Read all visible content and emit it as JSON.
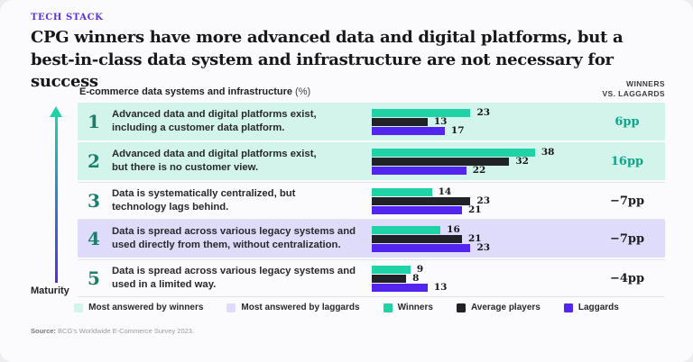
{
  "eyebrow": "TECH STACK",
  "title": "CPG winners have more advanced data and digital platforms, but a\nbest-in-class data system and infrastructure are not necessary for success",
  "chart_data": {
    "type": "bar",
    "column_header": "E-commerce data systems and infrastructure",
    "column_header_unit": "(%)",
    "delta_header_line1": "WINNERS",
    "delta_header_line2": "VS. LAGGARDS",
    "axis_label": "Maturity",
    "xmax": 40,
    "series_names": [
      "Winners",
      "Average players",
      "Laggards"
    ],
    "rows": [
      {
        "rank": "1",
        "label": "Advanced data and digital platforms exist,\nincluding a customer data platform.",
        "values": [
          23,
          13,
          17
        ],
        "delta": "6pp",
        "highlight": "winners"
      },
      {
        "rank": "2",
        "label": "Advanced data and digital platforms exist,\nbut there is no customer view.",
        "values": [
          38,
          32,
          22
        ],
        "delta": "16pp",
        "highlight": "winners"
      },
      {
        "rank": "3",
        "label": "Data is systematically centralized, but\ntechnology lags behind.",
        "values": [
          14,
          23,
          21
        ],
        "delta": "−7pp",
        "highlight": "none"
      },
      {
        "rank": "4",
        "label": "Data is spread across various legacy systems and\nused directly from them, without centralization.",
        "values": [
          16,
          21,
          23
        ],
        "delta": "−7pp",
        "highlight": "laggards"
      },
      {
        "rank": "5",
        "label": "Data is spread across various legacy systems and\nused in a limited way.",
        "values": [
          9,
          8,
          13
        ],
        "delta": "−4pp",
        "highlight": "none"
      }
    ],
    "legend": [
      {
        "label": "Most answered by winners",
        "color": "#d3f4ea"
      },
      {
        "label": "Most answered by laggards",
        "color": "#dedcfa"
      },
      {
        "label": "Winners",
        "color": "#1fd3a6"
      },
      {
        "label": "Average players",
        "color": "#202228"
      },
      {
        "label": "Laggards",
        "color": "#5226ee"
      }
    ],
    "colors": {
      "accent_purple": "#5b33e2",
      "rank_teal": "#187f6b",
      "delta_positive": "#0ca68a"
    }
  },
  "source": {
    "prefix": "Source:",
    "text": "BCG’s Worldwide E-Commerce Survey 2023."
  }
}
